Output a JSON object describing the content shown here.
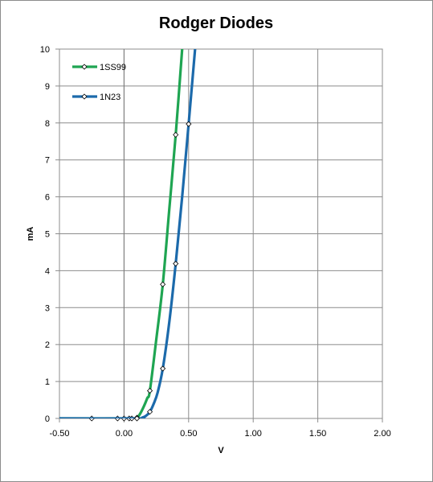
{
  "chart_data": {
    "type": "scatter",
    "title": "Rodger Diodes",
    "xlabel": "V",
    "ylabel": "mA",
    "xlim": [
      -0.5,
      2.0
    ],
    "ylim": [
      0,
      10
    ],
    "x_ticks": [
      "-0.50",
      "0.00",
      "0.50",
      "1.00",
      "1.50",
      "2.00"
    ],
    "x_tick_values": [
      -0.5,
      0.0,
      0.5,
      1.0,
      1.5,
      2.0
    ],
    "y_ticks": [
      "0",
      "1",
      "2",
      "3",
      "4",
      "5",
      "6",
      "7",
      "8",
      "9",
      "10"
    ],
    "y_tick_values": [
      0,
      1,
      2,
      3,
      4,
      5,
      6,
      7,
      8,
      9,
      10
    ],
    "grid": true,
    "legend_position": "top-left",
    "series": [
      {
        "name": "1SS99",
        "color": "#1fa552",
        "markers": [
          {
            "x": -0.25,
            "y": 0.0
          },
          {
            "x": -0.05,
            "y": 0.0
          },
          {
            "x": 0.0,
            "y": 0.0
          },
          {
            "x": 0.04,
            "y": 0.0
          },
          {
            "x": 0.06,
            "y": 0.0
          },
          {
            "x": 0.1,
            "y": 0.02
          },
          {
            "x": 0.2,
            "y": 0.75
          },
          {
            "x": 0.3,
            "y": 3.63
          },
          {
            "x": 0.4,
            "y": 7.68
          }
        ],
        "curve": [
          {
            "x": -0.5,
            "y": 0.0
          },
          {
            "x": 0.05,
            "y": 0.0
          },
          {
            "x": 0.08,
            "y": 0.0
          },
          {
            "x": 0.1,
            "y": 0.02
          },
          {
            "x": 0.12,
            "y": 0.1
          },
          {
            "x": 0.15,
            "y": 0.3
          },
          {
            "x": 0.18,
            "y": 0.55
          },
          {
            "x": 0.2,
            "y": 0.75
          },
          {
            "x": 0.25,
            "y": 2.15
          },
          {
            "x": 0.3,
            "y": 3.63
          },
          {
            "x": 0.35,
            "y": 5.65
          },
          {
            "x": 0.4,
            "y": 7.68
          },
          {
            "x": 0.45,
            "y": 10.0
          }
        ]
      },
      {
        "name": "1N23",
        "color": "#1c6aab",
        "markers": [
          {
            "x": 0.1,
            "y": 0.0
          },
          {
            "x": 0.2,
            "y": 0.18
          },
          {
            "x": 0.3,
            "y": 1.35
          },
          {
            "x": 0.4,
            "y": 4.19
          },
          {
            "x": 0.5,
            "y": 7.97
          }
        ],
        "curve": [
          {
            "x": -0.5,
            "y": 0.0
          },
          {
            "x": 0.1,
            "y": 0.0
          },
          {
            "x": 0.14,
            "y": 0.02
          },
          {
            "x": 0.17,
            "y": 0.07
          },
          {
            "x": 0.2,
            "y": 0.18
          },
          {
            "x": 0.23,
            "y": 0.4
          },
          {
            "x": 0.26,
            "y": 0.7
          },
          {
            "x": 0.3,
            "y": 1.35
          },
          {
            "x": 0.35,
            "y": 2.6
          },
          {
            "x": 0.4,
            "y": 4.19
          },
          {
            "x": 0.45,
            "y": 6.0
          },
          {
            "x": 0.5,
            "y": 7.97
          },
          {
            "x": 0.55,
            "y": 10.0
          }
        ]
      }
    ]
  }
}
